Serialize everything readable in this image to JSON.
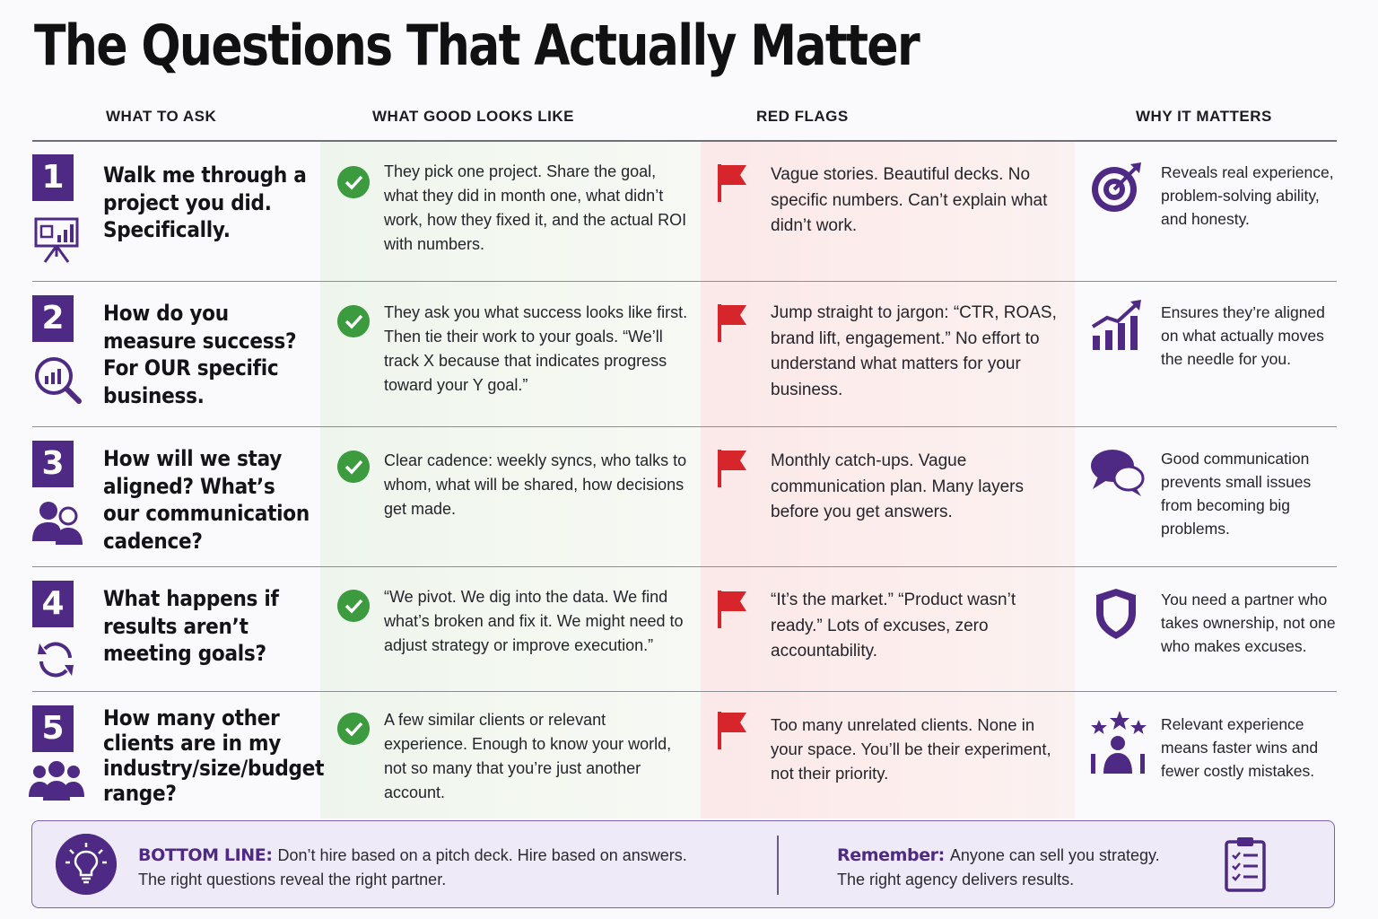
{
  "title": "The Questions That Actually Matter",
  "columns": [
    "WHAT TO ASK",
    "WHAT GOOD LOOKS LIKE",
    "RED FLAGS",
    "WHY IT MATTERS"
  ],
  "colors": {
    "accent": "#4e2a84",
    "check": "#3c9a3f",
    "flag": "#d6262b"
  },
  "rows": [
    {
      "number": "1",
      "question": "Walk me through a project you did. Specifically.",
      "question_icon": "presentation-chart-icon",
      "good": "They pick one project. Share the goal, what they did in month one, what didn’t work, how they fixed it, and the actual ROI with numbers.",
      "red": "Vague stories. Beautiful decks. No specific numbers. Can’t explain what didn’t work.",
      "why": "Reveals real experience, problem-solving ability, and honesty.",
      "why_icon": "target-icon"
    },
    {
      "number": "2",
      "question": "How do you measure success? For OUR specific business.",
      "question_icon": "magnifier-chart-icon",
      "good": "They ask you what success looks like first. Then tie their work to your goals. “We’ll track X because that indicates progress toward your Y goal.”",
      "red": "Jump straight to jargon: “CTR, ROAS, brand lift, engagement.” No effort to understand what matters for your business.",
      "why": "Ensures they’re aligned on what actually moves the needle for you.",
      "why_icon": "growth-chart-icon"
    },
    {
      "number": "3",
      "question": "How will we stay aligned? What’s our communication cadence?",
      "question_icon": "people-icon",
      "good": "Clear cadence: weekly syncs, who talks to whom, what will be shared, how decisions get made.",
      "red": "Monthly catch-ups. Vague communication plan. Many layers before you get answers.",
      "why": "Good communication prevents small issues from becoming big problems.",
      "why_icon": "chat-bubbles-icon"
    },
    {
      "number": "4",
      "question": "What happens if results aren’t meeting goals?",
      "question_icon": "refresh-icon",
      "good": "“We pivot. We dig into the data. We find what’s broken and fix it. We might need to adjust strategy or improve execution.”",
      "red": "“It’s the market.” “Product wasn’t ready.” Lots of excuses, zero accountability.",
      "why": "You need a partner who takes ownership, not one who makes excuses.",
      "why_icon": "shield-icon"
    },
    {
      "number": "5",
      "question": "How many other clients are in my industry/size/budget range?",
      "question_icon": "group-icon",
      "good": "A few similar clients or relevant experience. Enough to know your world, not so many that you’re just another account.",
      "red": "Too many unrelated clients. None in your space. You’ll be their experiment, not their priority.",
      "why": "Relevant experience means faster wins and fewer costly mistakes.",
      "why_icon": "star-person-icon"
    }
  ],
  "bottom": {
    "label": "BOTTOM LINE:",
    "line1": "Don’t hire based on a pitch deck. Hire based on answers.",
    "line2": "The right questions reveal the right partner.",
    "remember_label": "Remember:",
    "remember_line1": "Anyone can sell you strategy.",
    "remember_line2": "The right agency delivers results."
  }
}
